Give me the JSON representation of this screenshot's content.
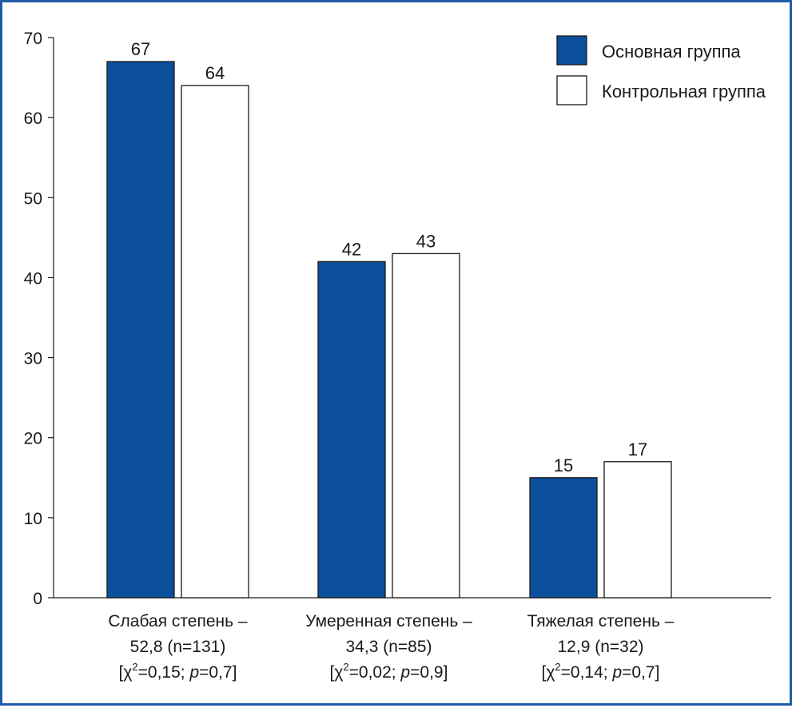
{
  "chart_data": {
    "type": "bar",
    "categories": [
      {
        "line1": "Слабая степень –",
        "line2": "52,8 (n=131)",
        "stat": {
          "open": "[χ",
          "sup": "2",
          "chi": "=0,15; ",
          "p_sym": "p",
          "p_val": "=0,7]"
        }
      },
      {
        "line1": "Умеренная степень –",
        "line2": "34,3 (n=85)",
        "stat": {
          "open": "[χ",
          "sup": "2",
          "chi": "=0,02; ",
          "p_sym": "p",
          "p_val": "=0,9]"
        }
      },
      {
        "line1": "Тяжелая степень –",
        "line2": "12,9 (n=32)",
        "stat": {
          "open": "[χ",
          "sup": "2",
          "chi": "=0,14; ",
          "p_sym": "p",
          "p_val": "=0,7]"
        }
      }
    ],
    "series": [
      {
        "name": "Основная группа",
        "color": "#0b4f9c",
        "values": [
          67,
          42,
          15
        ]
      },
      {
        "name": "Контрольная группа",
        "color": "#ffffff",
        "values": [
          64,
          43,
          17
        ]
      }
    ],
    "data_labels": [
      [
        "67",
        "42",
        "15"
      ],
      [
        "64",
        "43",
        "17"
      ]
    ],
    "y_ticks": [
      "0",
      "10",
      "20",
      "30",
      "40",
      "50",
      "60",
      "70"
    ],
    "y_tick_values": [
      0,
      10,
      20,
      30,
      40,
      50,
      60,
      70
    ],
    "ylim": [
      0,
      70
    ],
    "legend_position": "top-right",
    "title": "",
    "xlabel": "",
    "ylabel": ""
  }
}
